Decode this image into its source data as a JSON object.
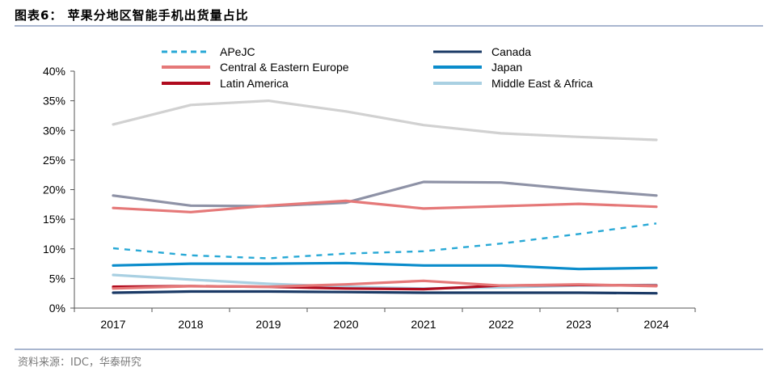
{
  "header": {
    "title": "图表6： 苹果分地区智能手机出货量占比"
  },
  "footer": {
    "source": "资料来源：IDC，华泰研究"
  },
  "colors": {
    "APeJC": "#29a9d6",
    "Canada": "#1b3a66",
    "Central & Eastern Europe": "#e57878",
    "Japan": "#0a8ccb",
    "Latin America": "#b00b1e",
    "Middle East & Africa": "#a9d0e2",
    "gray_light": "#d1d1d1",
    "gray_dark": "#8e92a6"
  },
  "chart_data": {
    "type": "line",
    "title": "",
    "xlabel": "",
    "ylabel": "",
    "ylim": [
      0,
      40
    ],
    "y_ticks": [
      "0%",
      "5%",
      "10%",
      "15%",
      "20%",
      "25%",
      "30%",
      "35%",
      "40%"
    ],
    "grid": false,
    "legend_position": "top",
    "categories": [
      "2017",
      "2018",
      "2019",
      "2020",
      "2021",
      "2022",
      "2023",
      "2024"
    ],
    "legend": [
      {
        "name": "APeJC",
        "color": "#29a9d6",
        "dash": true
      },
      {
        "name": "Canada",
        "color": "#1b3a66",
        "dash": false
      },
      {
        "name": "Central & Eastern Europe",
        "color": "#e57878",
        "dash": false
      },
      {
        "name": "Japan",
        "color": "#0a8ccb",
        "dash": false
      },
      {
        "name": "Latin America",
        "color": "#b00b1e",
        "dash": false
      },
      {
        "name": "Middle East & Africa",
        "color": "#a9d0e2",
        "dash": false
      }
    ],
    "series": [
      {
        "color": "#d1d1d1",
        "values": [
          31.0,
          34.3,
          35.0,
          33.2,
          30.9,
          29.5,
          28.9,
          28.4
        ]
      },
      {
        "color": "#8e92a6",
        "values": [
          19.0,
          17.3,
          17.2,
          17.8,
          21.3,
          21.2,
          20.0,
          19.0
        ]
      },
      {
        "name": "Central & Eastern Europe",
        "color": "#e57878",
        "values": [
          16.9,
          16.2,
          17.3,
          18.1,
          16.8,
          17.2,
          17.6,
          17.1
        ]
      },
      {
        "name": "APeJC",
        "color": "#29a9d6",
        "dash": true,
        "values": [
          10.1,
          8.9,
          8.4,
          9.2,
          9.6,
          10.9,
          12.5,
          14.3
        ]
      },
      {
        "name": "Japan",
        "color": "#0a8ccb",
        "values": [
          7.2,
          7.5,
          7.5,
          7.6,
          7.2,
          7.2,
          6.6,
          6.8
        ]
      },
      {
        "name": "Middle East & Africa",
        "color": "#a9d0e2",
        "values": [
          5.6,
          4.8,
          4.1,
          3.6,
          3.3,
          3.5,
          3.8,
          3.9
        ]
      },
      {
        "name": "Latin America",
        "color": "#b00b1e",
        "values": [
          3.6,
          3.7,
          3.6,
          3.3,
          3.2,
          3.8,
          3.9,
          3.8
        ]
      },
      {
        "color": "#e57878",
        "values": [
          3.3,
          3.7,
          3.6,
          4.0,
          4.6,
          3.8,
          4.0,
          3.7
        ]
      },
      {
        "name": "Canada",
        "color": "#1b3a66",
        "values": [
          2.6,
          2.8,
          2.8,
          2.7,
          2.6,
          2.6,
          2.6,
          2.5
        ]
      }
    ]
  }
}
